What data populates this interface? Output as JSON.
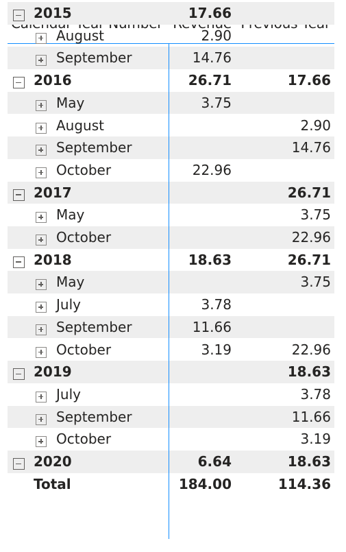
{
  "headers": {
    "year": "Calendar Year Number",
    "revenue": "Revenue",
    "previous_year": "Previous Year"
  },
  "rows": [
    {
      "kind": "year",
      "label": "2015",
      "revenue": "17.66",
      "previous_year": "",
      "expanded": true
    },
    {
      "kind": "month",
      "label": "August",
      "revenue": "2.90",
      "previous_year": "",
      "expanded": false
    },
    {
      "kind": "month",
      "label": "September",
      "revenue": "14.76",
      "previous_year": "",
      "expanded": false
    },
    {
      "kind": "year",
      "label": "2016",
      "revenue": "26.71",
      "previous_year": "17.66",
      "expanded": true
    },
    {
      "kind": "month",
      "label": "May",
      "revenue": "3.75",
      "previous_year": "",
      "expanded": false
    },
    {
      "kind": "month",
      "label": "August",
      "revenue": "",
      "previous_year": "2.90",
      "expanded": false
    },
    {
      "kind": "month",
      "label": "September",
      "revenue": "",
      "previous_year": "14.76",
      "expanded": false
    },
    {
      "kind": "month",
      "label": "October",
      "revenue": "22.96",
      "previous_year": "",
      "expanded": false
    },
    {
      "kind": "year",
      "label": "2017",
      "revenue": "",
      "previous_year": "26.71",
      "expanded": true
    },
    {
      "kind": "month",
      "label": "May",
      "revenue": "",
      "previous_year": "3.75",
      "expanded": false
    },
    {
      "kind": "month",
      "label": "October",
      "revenue": "",
      "previous_year": "22.96",
      "expanded": false
    },
    {
      "kind": "year",
      "label": "2018",
      "revenue": "18.63",
      "previous_year": "26.71",
      "expanded": true
    },
    {
      "kind": "month",
      "label": "May",
      "revenue": "",
      "previous_year": "3.75",
      "expanded": false
    },
    {
      "kind": "month",
      "label": "July",
      "revenue": "3.78",
      "previous_year": "",
      "expanded": false
    },
    {
      "kind": "month",
      "label": "September",
      "revenue": "11.66",
      "previous_year": "",
      "expanded": false
    },
    {
      "kind": "month",
      "label": "October",
      "revenue": "3.19",
      "previous_year": "22.96",
      "expanded": false
    },
    {
      "kind": "year",
      "label": "2019",
      "revenue": "",
      "previous_year": "18.63",
      "expanded": true
    },
    {
      "kind": "month",
      "label": "July",
      "revenue": "",
      "previous_year": "3.78",
      "expanded": false
    },
    {
      "kind": "month",
      "label": "September",
      "revenue": "",
      "previous_year": "11.66",
      "expanded": false
    },
    {
      "kind": "month",
      "label": "October",
      "revenue": "",
      "previous_year": "3.19",
      "expanded": false
    },
    {
      "kind": "year",
      "label": "2020",
      "revenue": "6.64",
      "previous_year": "18.63",
      "expanded": true
    }
  ],
  "total": {
    "label": "Total",
    "revenue": "184.00",
    "previous_year": "114.36"
  },
  "colors": {
    "accent_line": "#118dff",
    "band_shade": "#eeeeee",
    "text": "#252423",
    "toggle_border": "#605e5c"
  }
}
